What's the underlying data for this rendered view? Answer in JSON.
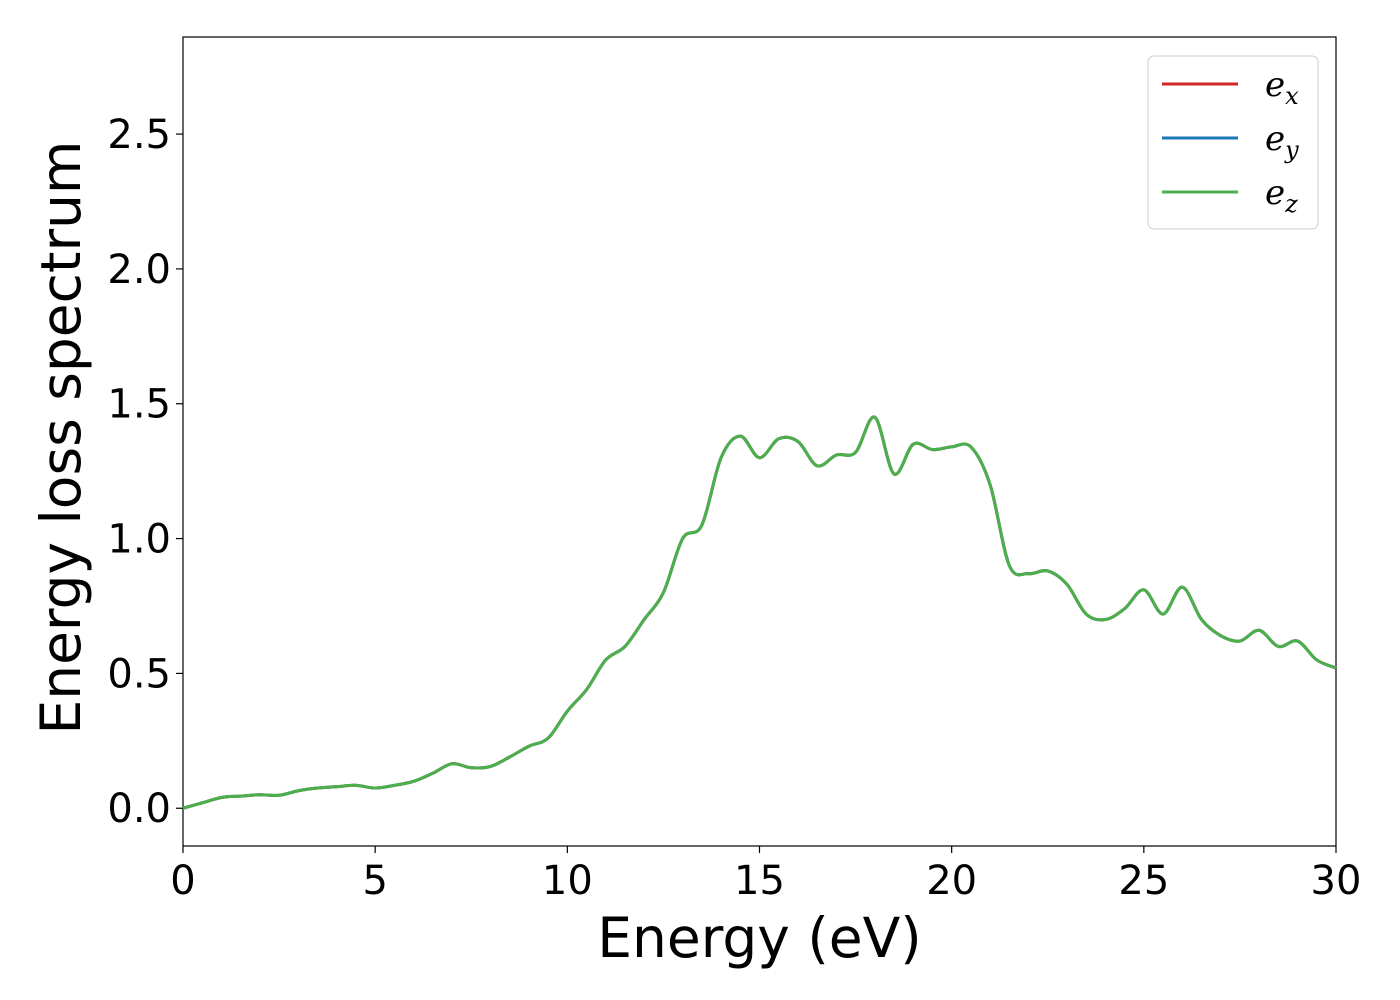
{
  "chart_data": {
    "type": "line",
    "title": "",
    "xlabel": "Energy (eV)",
    "ylabel": "Energy loss spectrum",
    "xlim": [
      0,
      30
    ],
    "ylim": [
      -0.14,
      2.86
    ],
    "xticks": [
      0,
      5,
      10,
      15,
      20,
      25,
      30
    ],
    "yticks": [
      0.0,
      0.5,
      1.0,
      1.5,
      2.0,
      2.5
    ],
    "xtick_labels": [
      "0",
      "5",
      "10",
      "15",
      "20",
      "25",
      "30"
    ],
    "ytick_labels": [
      "0.0",
      "0.5",
      "1.0",
      "1.5",
      "2.0",
      "2.5"
    ],
    "grid": false,
    "legend_position": "top-right",
    "x": [
      0,
      0.5,
      1,
      1.5,
      2,
      2.5,
      3,
      3.5,
      4,
      4.5,
      5,
      5.5,
      6,
      6.5,
      7,
      7.5,
      8,
      8.5,
      9,
      9.5,
      10,
      10.5,
      11,
      11.5,
      12,
      12.5,
      13,
      13.5,
      14,
      14.5,
      15,
      15.5,
      16,
      16.5,
      17,
      17.5,
      18,
      18.5,
      19,
      19.5,
      20,
      20.5,
      21,
      21.5,
      22,
      22.5,
      23,
      23.5,
      24,
      24.5,
      25,
      25.5,
      26,
      26.5,
      27,
      27.5,
      28,
      28.5,
      29,
      29.5,
      30
    ],
    "series": [
      {
        "name": "x",
        "color": "#d62728",
        "values": [
          0.0,
          0.02,
          0.04,
          0.045,
          0.05,
          0.048,
          0.065,
          0.075,
          0.08,
          0.085,
          0.075,
          0.085,
          0.1,
          0.13,
          0.165,
          0.15,
          0.155,
          0.19,
          0.23,
          0.26,
          0.36,
          0.44,
          0.55,
          0.6,
          0.7,
          0.8,
          1.0,
          1.05,
          1.3,
          1.38,
          1.3,
          1.37,
          1.36,
          1.27,
          1.31,
          1.32,
          1.45,
          1.24,
          1.35,
          1.33,
          1.34,
          1.34,
          1.2,
          0.9,
          0.87,
          0.88,
          0.83,
          0.72,
          0.7,
          0.74,
          0.81,
          0.72,
          0.82,
          0.7,
          0.64,
          0.62,
          0.66,
          0.6,
          0.62,
          0.55,
          0.52
        ]
      },
      {
        "name": "y",
        "color": "#1f77b4",
        "values": [
          0.0,
          0.02,
          0.04,
          0.045,
          0.05,
          0.048,
          0.065,
          0.075,
          0.08,
          0.085,
          0.075,
          0.085,
          0.1,
          0.13,
          0.165,
          0.15,
          0.155,
          0.19,
          0.23,
          0.26,
          0.36,
          0.44,
          0.55,
          0.6,
          0.7,
          0.8,
          1.0,
          1.05,
          1.3,
          1.38,
          1.3,
          1.37,
          1.36,
          1.27,
          1.31,
          1.32,
          1.45,
          1.24,
          1.35,
          1.33,
          1.34,
          1.34,
          1.2,
          0.9,
          0.87,
          0.88,
          0.83,
          0.72,
          0.7,
          0.74,
          0.81,
          0.72,
          0.82,
          0.7,
          0.64,
          0.62,
          0.66,
          0.6,
          0.62,
          0.55,
          0.52
        ]
      },
      {
        "name": "z",
        "color": "#4daf4a",
        "values": [
          0.0,
          0.02,
          0.04,
          0.045,
          0.05,
          0.048,
          0.065,
          0.075,
          0.08,
          0.085,
          0.075,
          0.085,
          0.1,
          0.13,
          0.165,
          0.15,
          0.155,
          0.19,
          0.23,
          0.26,
          0.36,
          0.44,
          0.55,
          0.6,
          0.7,
          0.8,
          1.0,
          1.05,
          1.3,
          1.38,
          1.3,
          1.37,
          1.36,
          1.27,
          1.31,
          1.32,
          1.45,
          1.24,
          1.35,
          1.33,
          1.34,
          1.34,
          1.2,
          0.9,
          0.87,
          0.88,
          0.83,
          0.72,
          0.7,
          0.74,
          0.81,
          0.72,
          0.82,
          0.7,
          0.64,
          0.62,
          0.66,
          0.6,
          0.62,
          0.55,
          0.52
        ]
      }
    ],
    "legend": {
      "entries": [
        {
          "base": "e",
          "sub": "x",
          "color": "#d62728"
        },
        {
          "base": "e",
          "sub": "y",
          "color": "#1f77b4"
        },
        {
          "base": "e",
          "sub": "z",
          "color": "#4daf4a"
        }
      ]
    }
  }
}
